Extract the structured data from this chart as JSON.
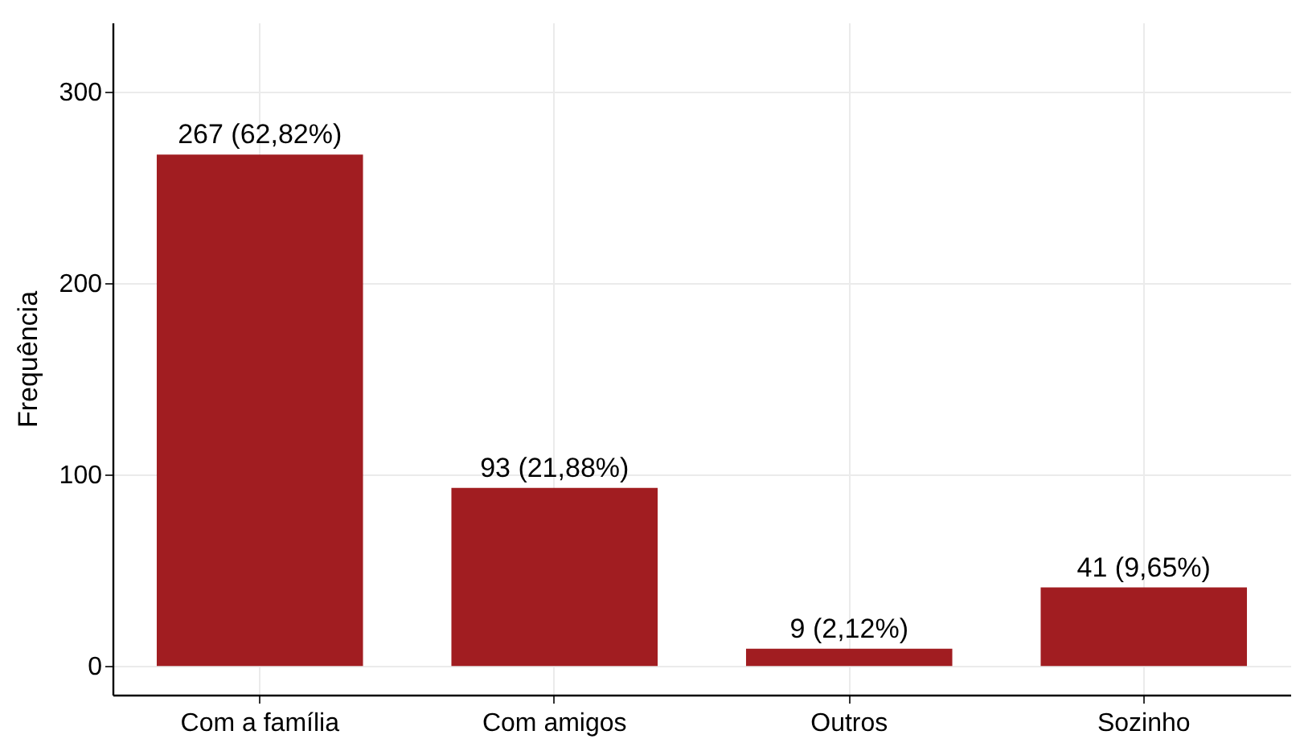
{
  "chart_data": {
    "type": "bar",
    "ylabel": "Frequência",
    "categories": [
      "Com a família",
      "Com amigos",
      "Outros",
      "Sozinho"
    ],
    "values": [
      267,
      93,
      9,
      41
    ],
    "value_labels": [
      "267 (62,82%)",
      "93 (21,88%)",
      "9 (2,12%)",
      "41 (9,65%)"
    ],
    "color": "#a11d21",
    "ylim": [
      -15,
      336
    ],
    "yticks": [
      0,
      100,
      200,
      300
    ],
    "grid": true
  }
}
